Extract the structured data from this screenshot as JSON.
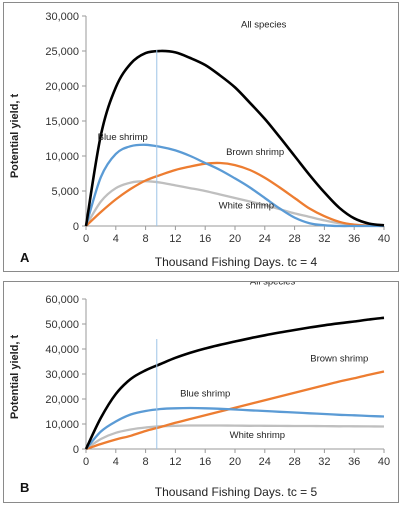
{
  "chart_data": [
    {
      "type": "line",
      "panel_label": "A",
      "xlabel": "Thousand Fishing Days. tc = 4",
      "ylabel": "Potential yield, t",
      "xlim": [
        0,
        40
      ],
      "ylim": [
        0,
        30000
      ],
      "x_ticks": [
        0,
        4,
        8,
        12,
        16,
        20,
        24,
        28,
        32,
        36,
        40
      ],
      "y_ticks": [
        0,
        5000,
        10000,
        15000,
        20000,
        25000,
        30000
      ],
      "y_tick_labels": [
        "0",
        "5,000",
        "10,000",
        "15,000",
        "20,000",
        "25,000",
        "30,000"
      ],
      "vertical_line_x": 9.5,
      "x": [
        0,
        2,
        4,
        6,
        8,
        10,
        12,
        14,
        16,
        18,
        20,
        22,
        24,
        26,
        28,
        30,
        32,
        34,
        36,
        38,
        40
      ],
      "series": [
        {
          "name": "All species",
          "color": "#000000",
          "values": [
            0,
            13000,
            19800,
            23200,
            24700,
            25000,
            24800,
            24000,
            23000,
            21500,
            19800,
            17600,
            15300,
            12700,
            10000,
            7300,
            4800,
            2600,
            1100,
            350,
            100
          ]
        },
        {
          "name": "Blue shrimp",
          "color": "#5b9bd5",
          "values": [
            0,
            7000,
            10300,
            11400,
            11600,
            11300,
            10800,
            10000,
            9000,
            8000,
            6800,
            5500,
            4000,
            2500,
            1200,
            400,
            100,
            0,
            0,
            0,
            0
          ]
        },
        {
          "name": "Brown shrimp",
          "color": "#ed7d31",
          "values": [
            0,
            2000,
            3800,
            5300,
            6500,
            7300,
            8000,
            8500,
            8900,
            9000,
            8700,
            8000,
            6900,
            5500,
            4000,
            2500,
            1400,
            600,
            200,
            50,
            0
          ]
        },
        {
          "name": "White shrimp",
          "color": "#bfbfbf",
          "values": [
            0,
            3500,
            5400,
            6200,
            6400,
            6200,
            5800,
            5400,
            5000,
            4500,
            4000,
            3500,
            3000,
            2400,
            1800,
            1300,
            800,
            400,
            200,
            80,
            30
          ]
        }
      ],
      "annotations": [
        {
          "text": "All species",
          "series": "All species"
        },
        {
          "text": "Blue shrimp",
          "series": "Blue shrimp"
        },
        {
          "text": "Brown shrimp",
          "series": "Brown shrimp"
        },
        {
          "text": "White shrimp",
          "series": "White shrimp"
        }
      ]
    },
    {
      "type": "line",
      "panel_label": "B",
      "xlabel": "Thousand Fishing Days. tc = 5",
      "ylabel": "Potential yield, t",
      "xlim": [
        0,
        40
      ],
      "ylim": [
        0,
        60000
      ],
      "x_ticks": [
        0,
        4,
        8,
        12,
        16,
        20,
        24,
        28,
        32,
        36,
        40
      ],
      "y_ticks": [
        0,
        10000,
        20000,
        30000,
        40000,
        50000,
        60000
      ],
      "y_tick_labels": [
        "0",
        "10,000",
        "20,000",
        "30,000",
        "40,000",
        "50,000",
        "60,000"
      ],
      "vertical_line_x": 9.5,
      "x": [
        0,
        2,
        4,
        6,
        8,
        10,
        12,
        14,
        16,
        18,
        20,
        22,
        24,
        26,
        28,
        30,
        32,
        34,
        36,
        38,
        40
      ],
      "series": [
        {
          "name": "All species",
          "color": "#000000",
          "values": [
            0,
            12500,
            22000,
            28000,
            31500,
            34000,
            36500,
            38500,
            40200,
            41700,
            43000,
            44300,
            45500,
            46600,
            47600,
            48600,
            49500,
            50300,
            51000,
            51800,
            52500
          ]
        },
        {
          "name": "Brown shrimp",
          "color": "#ed7d31",
          "values": [
            0,
            2000,
            3800,
            5300,
            7200,
            8800,
            10500,
            12000,
            13500,
            15000,
            16500,
            18000,
            19500,
            21000,
            22500,
            24000,
            25500,
            27000,
            28300,
            29700,
            31000
          ]
        },
        {
          "name": "Blue shrimp",
          "color": "#5b9bd5",
          "values": [
            0,
            7000,
            11000,
            13800,
            15200,
            16000,
            16300,
            16400,
            16300,
            16100,
            15800,
            15500,
            15200,
            14900,
            14600,
            14300,
            14000,
            13700,
            13500,
            13200,
            13000
          ]
        },
        {
          "name": "White shrimp",
          "color": "#bfbfbf",
          "values": [
            0,
            4000,
            6500,
            7800,
            8600,
            9100,
            9300,
            9400,
            9400,
            9400,
            9350,
            9300,
            9300,
            9250,
            9200,
            9200,
            9150,
            9100,
            9100,
            9050,
            9000
          ]
        }
      ],
      "annotations": [
        {
          "text": "All species",
          "series": "All species"
        },
        {
          "text": "Brown shrimp",
          "series": "Brown shrimp"
        },
        {
          "text": "Blue shrimp",
          "series": "Blue shrimp"
        },
        {
          "text": "White shrimp",
          "series": "White shrimp"
        }
      ]
    }
  ]
}
